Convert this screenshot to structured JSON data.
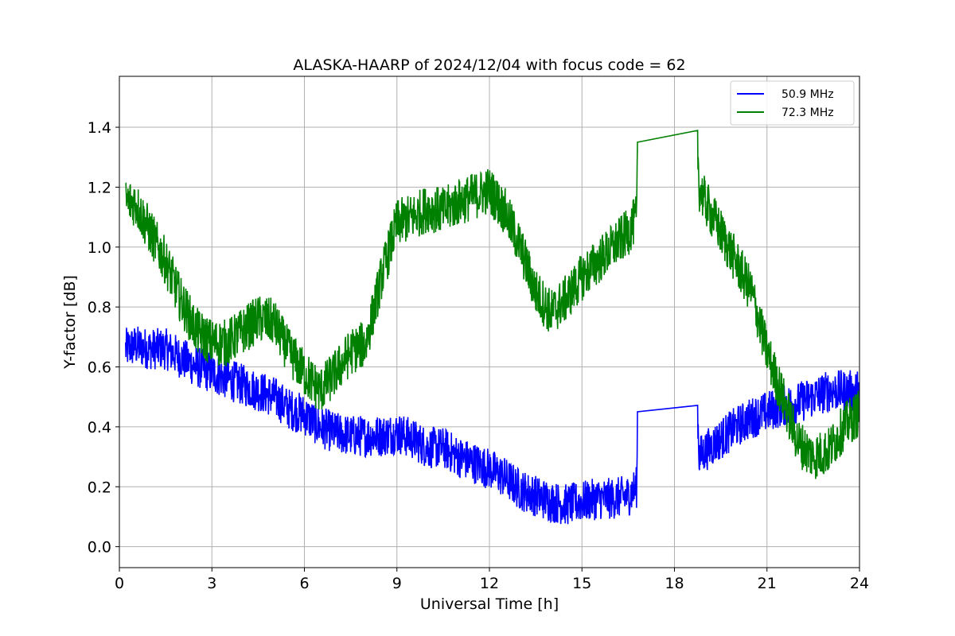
{
  "chart_data": {
    "type": "line",
    "title": "ALASKA-HAARP of 2024/12/04 with focus code = 62",
    "xlabel": "Universal Time [h]",
    "ylabel": "Y-factor [dB]",
    "xlim": [
      0,
      24
    ],
    "ylim": [
      -0.07,
      1.57
    ],
    "xticks": [
      0,
      3,
      6,
      9,
      12,
      15,
      18,
      21,
      24
    ],
    "xtick_labels": [
      "0",
      "3",
      "6",
      "9",
      "12",
      "15",
      "18",
      "21",
      "24"
    ],
    "yticks": [
      0.0,
      0.2,
      0.4,
      0.6,
      0.8,
      1.0,
      1.2,
      1.4
    ],
    "ytick_labels": [
      "0.0",
      "0.2",
      "0.4",
      "0.6",
      "0.8",
      "1.0",
      "1.2",
      "1.4"
    ],
    "grid": true,
    "legend_position": "top-right",
    "series": [
      {
        "name": "50.9 MHz",
        "color": "#0000ff",
        "x": [
          0.2,
          0.5,
          1.0,
          1.5,
          2.0,
          2.5,
          3.0,
          3.5,
          4.0,
          4.5,
          5.0,
          5.5,
          6.0,
          6.5,
          7.0,
          7.5,
          8.0,
          8.5,
          9.0,
          9.5,
          10.0,
          10.5,
          11.0,
          11.5,
          12.0,
          12.5,
          13.0,
          13.5,
          14.0,
          14.5,
          15.0,
          15.5,
          16.0,
          16.5,
          16.78,
          16.8,
          18.75,
          18.8,
          19.0,
          19.5,
          20.0,
          20.5,
          21.0,
          21.5,
          22.0,
          22.5,
          23.0,
          23.5,
          24.0
        ],
        "values": [
          0.66,
          0.67,
          0.66,
          0.66,
          0.63,
          0.6,
          0.58,
          0.56,
          0.54,
          0.52,
          0.5,
          0.46,
          0.44,
          0.4,
          0.38,
          0.37,
          0.37,
          0.37,
          0.38,
          0.36,
          0.33,
          0.33,
          0.3,
          0.28,
          0.26,
          0.23,
          0.19,
          0.17,
          0.15,
          0.14,
          0.15,
          0.16,
          0.16,
          0.17,
          0.2,
          0.45,
          0.45,
          0.3,
          0.32,
          0.36,
          0.4,
          0.43,
          0.45,
          0.47,
          0.48,
          0.5,
          0.52,
          0.52,
          0.52
        ],
        "noise": 0.07
      },
      {
        "name": "72.3 MHz",
        "color": "#008000",
        "x": [
          0.2,
          0.5,
          1.0,
          1.5,
          2.0,
          2.5,
          3.0,
          3.5,
          4.0,
          4.5,
          5.0,
          5.5,
          6.0,
          6.5,
          7.0,
          7.5,
          8.0,
          8.5,
          9.0,
          9.5,
          10.0,
          10.5,
          11.0,
          11.5,
          12.0,
          12.5,
          13.0,
          13.5,
          14.0,
          14.5,
          15.0,
          15.5,
          16.0,
          16.5,
          16.78,
          16.8,
          18.75,
          18.8,
          19.0,
          19.5,
          20.0,
          20.5,
          21.0,
          21.5,
          22.0,
          22.5,
          23.0,
          23.5,
          24.0
        ],
        "values": [
          1.15,
          1.15,
          1.05,
          0.95,
          0.82,
          0.72,
          0.68,
          0.68,
          0.72,
          0.76,
          0.75,
          0.65,
          0.58,
          0.52,
          0.58,
          0.65,
          0.68,
          0.9,
          1.08,
          1.1,
          1.13,
          1.12,
          1.15,
          1.17,
          1.19,
          1.12,
          1.0,
          0.85,
          0.78,
          0.83,
          0.9,
          0.95,
          1.0,
          1.05,
          1.1,
          1.35,
          1.34,
          1.2,
          1.15,
          1.05,
          0.95,
          0.85,
          0.65,
          0.5,
          0.35,
          0.3,
          0.32,
          0.4,
          0.45
        ],
        "noise": 0.08
      }
    ]
  }
}
